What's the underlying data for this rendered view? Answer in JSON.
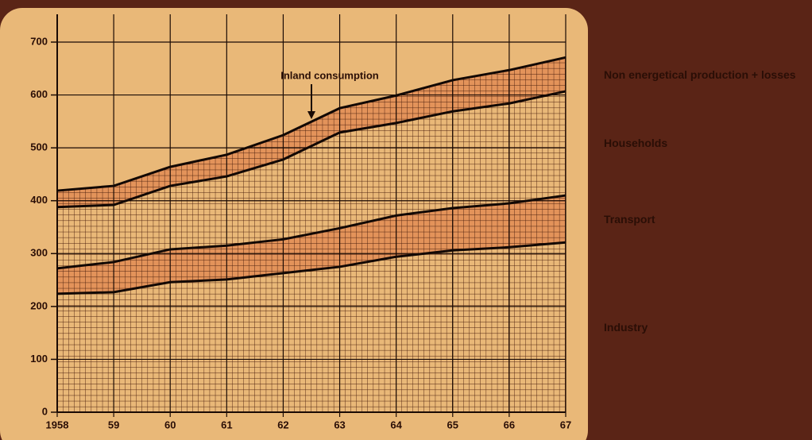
{
  "chart_data": {
    "type": "stacked_area",
    "annotation": "Inland consumption",
    "categories": [
      "1958",
      "59",
      "60",
      "61",
      "62",
      "63",
      "64",
      "65",
      "66",
      "67"
    ],
    "series": [
      {
        "name": "Industry",
        "color": "#e9b878",
        "values": [
          224,
          227,
          246,
          251,
          263,
          275,
          294,
          306,
          312,
          321
        ]
      },
      {
        "name": "Transport",
        "color": "#e3935a",
        "values": [
          48,
          57,
          62,
          64,
          64,
          73,
          78,
          80,
          83,
          89
        ]
      },
      {
        "name": "Households",
        "color": "#e9b878",
        "values": [
          116,
          108,
          120,
          131,
          151,
          181,
          175,
          183,
          189,
          197
        ]
      },
      {
        "name": "Non energetical production + losses",
        "color": "#e3935a",
        "values": [
          31,
          36,
          36,
          41,
          46,
          46,
          52,
          59,
          63,
          64
        ]
      }
    ],
    "ylim": [
      0,
      700
    ],
    "yticks": [
      0,
      100,
      200,
      300,
      400,
      500,
      600,
      700
    ],
    "grid": true
  }
}
